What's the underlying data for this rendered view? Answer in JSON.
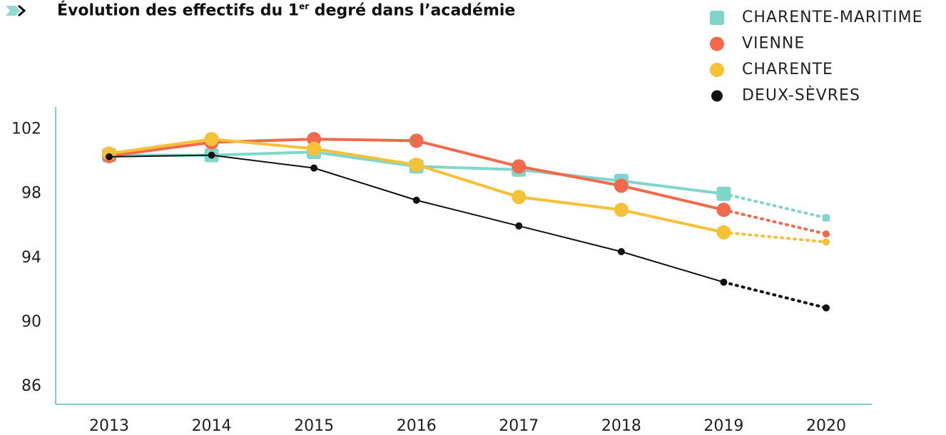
{
  "chart_data": {
    "type": "line",
    "title_parts": [
      "Évolution des effectifs du 1",
      "er",
      " degré dans l’académie"
    ],
    "categories": [
      "2013",
      "2014",
      "2015",
      "2016",
      "2017",
      "2018",
      "2019",
      "2020"
    ],
    "projection_from": "2019",
    "series": [
      {
        "name": "CHARENTE-MARITIME",
        "color": "#7fd6ca",
        "marker": "square",
        "values": [
          100.4,
          100.4,
          100.6,
          99.7,
          99.5,
          98.8,
          98.0,
          96.5
        ]
      },
      {
        "name": "VIENNE",
        "color": "#f26a4b",
        "marker": "circle",
        "values": [
          100.35,
          101.2,
          101.4,
          101.3,
          99.7,
          98.5,
          97.0,
          95.5
        ]
      },
      {
        "name": "CHARENTE",
        "color": "#f7c137",
        "marker": "circle",
        "values": [
          100.5,
          101.4,
          100.8,
          99.8,
          97.8,
          97.0,
          95.6,
          95.0
        ]
      },
      {
        "name": "DEUX-SÈVRES",
        "color": "#111111",
        "marker": "dot",
        "values": [
          100.3,
          100.4,
          99.6,
          97.6,
          96.0,
          94.4,
          92.5,
          90.9
        ]
      }
    ],
    "ylim": [
      84.9,
      103.4
    ],
    "yticks": [
      86,
      90,
      94,
      98,
      102
    ],
    "grid": false
  }
}
